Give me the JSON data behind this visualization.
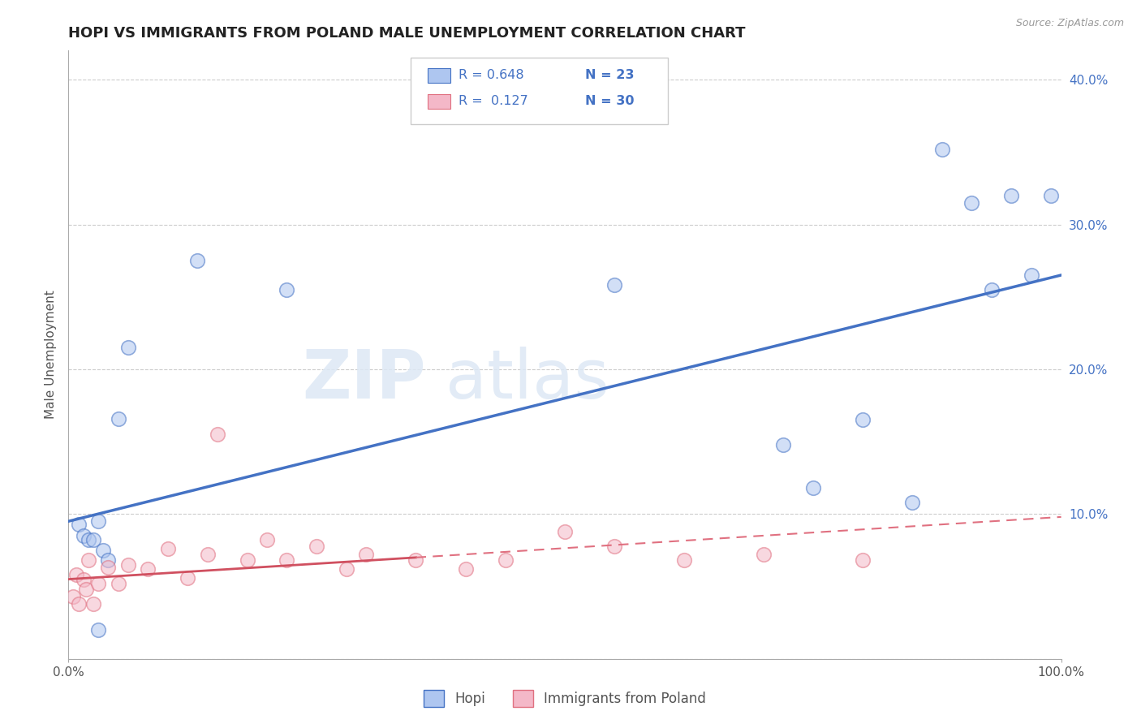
{
  "title": "HOPI VS IMMIGRANTS FROM POLAND MALE UNEMPLOYMENT CORRELATION CHART",
  "source": "Source: ZipAtlas.com",
  "ylabel": "Male Unemployment",
  "xlim": [
    0.0,
    1.0
  ],
  "ylim": [
    0.0,
    0.42
  ],
  "x_ticks": [
    0.0,
    1.0
  ],
  "x_tick_labels": [
    "0.0%",
    "100.0%"
  ],
  "y_ticks": [
    0.0,
    0.1,
    0.2,
    0.3,
    0.4
  ],
  "y_tick_labels_left": [
    "",
    "",
    "",
    "",
    ""
  ],
  "y_tick_labels_right": [
    "",
    "10.0%",
    "20.0%",
    "30.0%",
    "40.0%"
  ],
  "hopi_scatter_x": [
    0.01,
    0.015,
    0.02,
    0.025,
    0.03,
    0.035,
    0.04,
    0.05,
    0.06,
    0.13,
    0.22,
    0.55,
    0.72,
    0.75,
    0.8,
    0.85,
    0.88,
    0.91,
    0.93,
    0.95,
    0.97,
    0.99,
    0.03
  ],
  "hopi_scatter_y": [
    0.093,
    0.085,
    0.082,
    0.082,
    0.095,
    0.075,
    0.068,
    0.166,
    0.215,
    0.275,
    0.255,
    0.258,
    0.148,
    0.118,
    0.165,
    0.108,
    0.352,
    0.315,
    0.255,
    0.32,
    0.265,
    0.32,
    0.02
  ],
  "poland_scatter_x": [
    0.005,
    0.008,
    0.01,
    0.015,
    0.018,
    0.02,
    0.025,
    0.03,
    0.04,
    0.05,
    0.06,
    0.08,
    0.1,
    0.12,
    0.14,
    0.15,
    0.18,
    0.2,
    0.22,
    0.25,
    0.28,
    0.3,
    0.35,
    0.4,
    0.44,
    0.5,
    0.55,
    0.62,
    0.7,
    0.8
  ],
  "poland_scatter_y": [
    0.043,
    0.058,
    0.038,
    0.055,
    0.048,
    0.068,
    0.038,
    0.052,
    0.063,
    0.052,
    0.065,
    0.062,
    0.076,
    0.056,
    0.072,
    0.155,
    0.068,
    0.082,
    0.068,
    0.078,
    0.062,
    0.072,
    0.068,
    0.062,
    0.068,
    0.088,
    0.078,
    0.068,
    0.072,
    0.068
  ],
  "hopi_line_x": [
    0.0,
    1.0
  ],
  "hopi_line_y": [
    0.095,
    0.265
  ],
  "poland_solid_line_x": [
    0.0,
    0.35
  ],
  "poland_solid_line_y": [
    0.055,
    0.07
  ],
  "poland_dash_line_x": [
    0.35,
    1.0
  ],
  "poland_dash_line_y": [
    0.07,
    0.098
  ],
  "hopi_color": "#4472c4",
  "poland_color": "#e07080",
  "poland_solid_color": "#d05060",
  "hopi_fill": "#aec6f0",
  "poland_fill": "#f4b8c8",
  "scatter_size": 160,
  "scatter_alpha": 0.55,
  "grid_color": "#cccccc",
  "bg_color": "#ffffff",
  "title_fontsize": 13,
  "axis_label_fontsize": 11,
  "tick_fontsize": 11,
  "legend_text_color": "#4472c4",
  "legend_r1": "R = 0.648",
  "legend_n1": "N = 23",
  "legend_r2": "R =  0.127",
  "legend_n2": "N = 30"
}
